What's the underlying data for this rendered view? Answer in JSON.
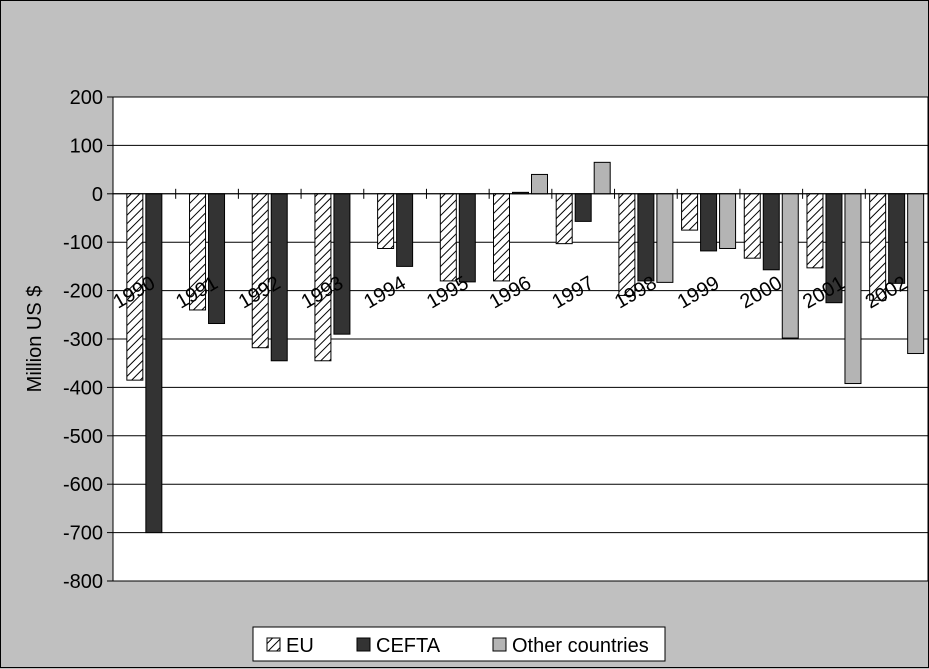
{
  "chart_data": {
    "type": "bar",
    "title": "",
    "xlabel": "",
    "ylabel": "Million US $",
    "ylim": [
      -800,
      200
    ],
    "yticks": [
      200,
      100,
      0,
      -100,
      -200,
      -300,
      -400,
      -500,
      -600,
      -700,
      -800
    ],
    "grid": true,
    "legend_position": "bottom",
    "categories": [
      "1990",
      "1991",
      "1992",
      "1993",
      "1994",
      "1995",
      "1996",
      "1997",
      "1998",
      "1999",
      "2000",
      "2001",
      "2002"
    ],
    "series": [
      {
        "name": "EU",
        "color": "#d8d8d8",
        "pattern": "diagonal-hatch",
        "values": [
          -385,
          -240,
          -318,
          -345,
          -113,
          -180,
          -180,
          -103,
          -210,
          -75,
          -133,
          -153,
          -220
        ]
      },
      {
        "name": "CEFTA",
        "color": "#333333",
        "pattern": "solid",
        "values": [
          -700,
          -268,
          -345,
          -290,
          -150,
          -182,
          3,
          -57,
          -180,
          -118,
          -157,
          -225,
          -185
        ]
      },
      {
        "name": "Other countries",
        "color": "#b4b4b4",
        "pattern": "solid",
        "values": [
          null,
          null,
          null,
          null,
          null,
          null,
          40,
          65,
          -183,
          -113,
          -298,
          -392,
          -330
        ]
      }
    ]
  }
}
